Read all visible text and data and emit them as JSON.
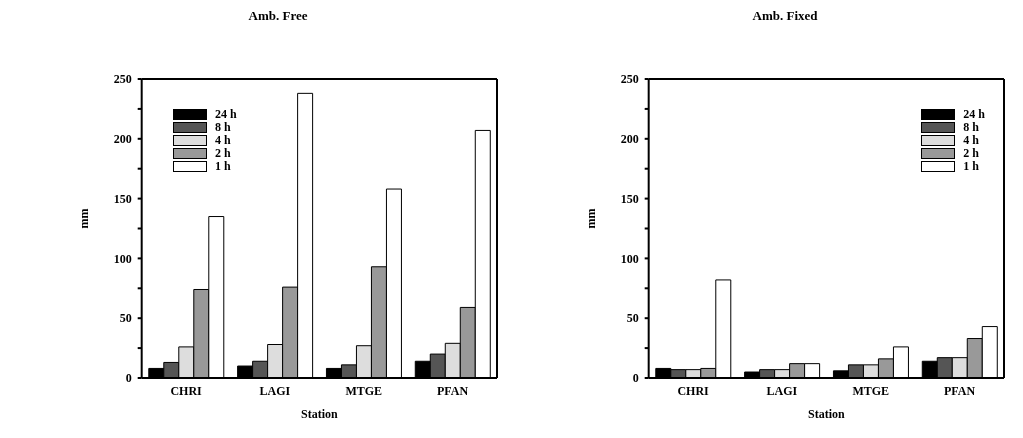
{
  "chart_data": [
    {
      "type": "bar",
      "title": "Amb. Free",
      "xlabel": "Station",
      "ylabel": "mm",
      "categories": [
        "CHRI",
        "LAGI",
        "MTGE",
        "PFAN"
      ],
      "series": [
        {
          "name": "24 h",
          "color": "#000000",
          "values": [
            8,
            10,
            8,
            14
          ]
        },
        {
          "name": "8 h",
          "color": "#555555",
          "values": [
            13,
            14,
            11,
            20
          ]
        },
        {
          "name": "4 h",
          "color": "#dddddd",
          "values": [
            26,
            28,
            27,
            29
          ]
        },
        {
          "name": "2 h",
          "color": "#999999",
          "values": [
            74,
            76,
            93,
            59
          ]
        },
        {
          "name": "1 h",
          "color": "#ffffff",
          "values": [
            135,
            238,
            158,
            207
          ]
        }
      ],
      "ylim": [
        0,
        250
      ],
      "yticks": [
        0,
        {
          "value": 25,
          "label": null
        },
        50,
        {
          "value": 75,
          "label": null
        },
        100,
        {
          "value": 125,
          "label": null
        },
        150,
        {
          "value": 175,
          "label": null
        },
        200,
        {
          "value": 225,
          "label": null
        },
        250
      ],
      "legend": "top left"
    },
    {
      "type": "bar",
      "title": "Amb. Fixed",
      "xlabel": "Station",
      "ylabel": "mm",
      "categories": [
        "CHRI",
        "LAGI",
        "MTGE",
        "PFAN"
      ],
      "series": [
        {
          "name": "24 h",
          "color": "#000000",
          "values": [
            8,
            5,
            6,
            14
          ]
        },
        {
          "name": "8 h",
          "color": "#555555",
          "values": [
            7,
            7,
            11,
            17
          ]
        },
        {
          "name": "4 h",
          "color": "#dddddd",
          "values": [
            7,
            7,
            11,
            17
          ]
        },
        {
          "name": "2 h",
          "color": "#999999",
          "values": [
            8,
            12,
            16,
            33
          ]
        },
        {
          "name": "1 h",
          "color": "#ffffff",
          "values": [
            82,
            12,
            26,
            43
          ]
        }
      ],
      "ylim": [
        0,
        250
      ],
      "yticks": [
        0,
        {
          "value": 25,
          "label": null
        },
        50,
        {
          "value": 75,
          "label": null
        },
        100,
        {
          "value": 125,
          "label": null
        },
        150,
        {
          "value": 175,
          "label": null
        },
        200,
        {
          "value": 225,
          "label": null
        },
        250
      ],
      "legend": "top right"
    }
  ]
}
